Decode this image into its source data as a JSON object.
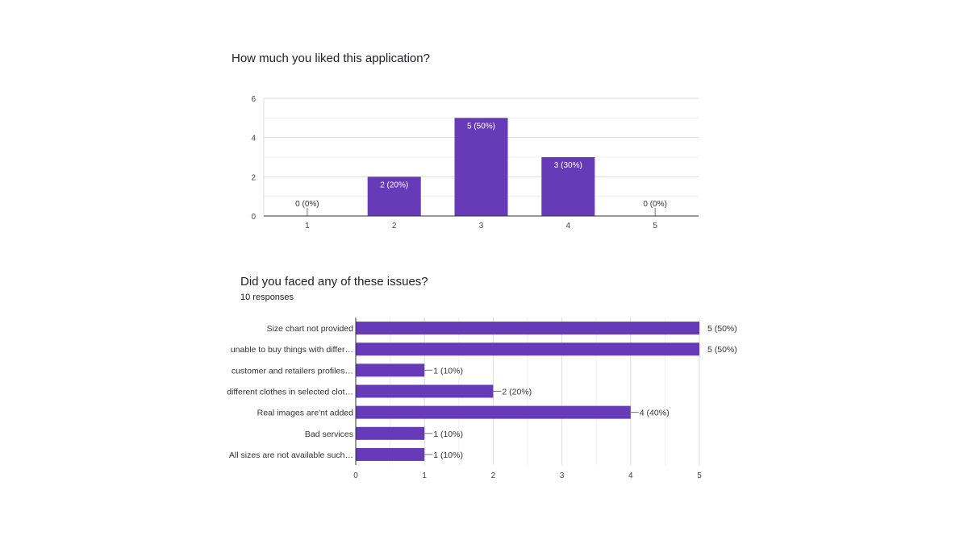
{
  "chart_data": [
    {
      "type": "bar",
      "orientation": "vertical",
      "title": "How much you liked this application?",
      "categories": [
        "1",
        "2",
        "3",
        "4",
        "5"
      ],
      "values": [
        0,
        2,
        5,
        3,
        0
      ],
      "data_labels": [
        "0 (0%)",
        "2 (20%)",
        "5 (50%)",
        "3 (30%)",
        "0 (0%)"
      ],
      "y_ticks": [
        "0",
        "2",
        "4",
        "6"
      ],
      "ylim": [
        0,
        6
      ],
      "grid": true,
      "bar_color": "#673ab7"
    },
    {
      "type": "bar",
      "orientation": "horizontal",
      "title": "Did you faced any of these issues?",
      "subtitle": "10 responses",
      "categories": [
        "Size chart not provided",
        "unable to buy things with differ…",
        "customer and retailers profiles…",
        "different clothes in selected clot…",
        "Real images are'nt added",
        "Bad services",
        "All sizes are not available such…"
      ],
      "values": [
        5,
        5,
        1,
        2,
        4,
        1,
        1
      ],
      "data_labels": [
        "5 (50%)",
        "5 (50%)",
        "1 (10%)",
        "2 (20%)",
        "4 (40%)",
        "1 (10%)",
        "1 (10%)"
      ],
      "x_ticks": [
        "0",
        "1",
        "2",
        "3",
        "4",
        "5"
      ],
      "xlim": [
        0,
        5
      ],
      "grid": true,
      "bar_color": "#673ab7"
    }
  ]
}
